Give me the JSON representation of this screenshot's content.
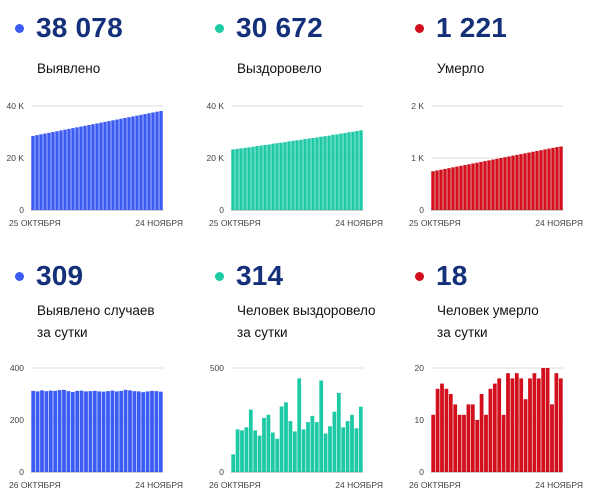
{
  "colors": {
    "blue": "#3b5bf4",
    "teal": "#1ec9a6",
    "red": "#d10f1d",
    "dark": "#14307a"
  },
  "chart_data": [
    {
      "id": "p1",
      "type": "bar",
      "color": "#3b5bf4",
      "value": "38 078",
      "label": "Выявлено",
      "ylim": [
        0,
        40000
      ],
      "yticks": [
        {
          "v": 0,
          "t": "0"
        },
        {
          "v": 20000,
          "t": "20 K"
        },
        {
          "v": 40000,
          "t": "40 K"
        }
      ],
      "start_label": "25 ОКТЯБРЯ",
      "end_label": "24 НОЯБРЯ",
      "values": [
        28500,
        28800,
        29100,
        29400,
        29700,
        30000,
        30300,
        30600,
        30900,
        31200,
        31500,
        31800,
        32100,
        32400,
        32700,
        33000,
        33300,
        33600,
        33900,
        34200,
        34500,
        34800,
        35100,
        35400,
        35700,
        36000,
        36300,
        36600,
        36900,
        37200,
        37500,
        37800,
        38078
      ]
    },
    {
      "id": "p2",
      "type": "bar",
      "color": "#1ec9a6",
      "value": "30 672",
      "label": "Выздоровело",
      "ylim": [
        0,
        40000
      ],
      "yticks": [
        {
          "v": 0,
          "t": "0"
        },
        {
          "v": 20000,
          "t": "20 K"
        },
        {
          "v": 40000,
          "t": "40 K"
        }
      ],
      "start_label": "25 ОКТЯБРЯ",
      "end_label": "24 НОЯБРЯ",
      "values": [
        23300,
        23500,
        23700,
        23900,
        24100,
        24300,
        24600,
        24800,
        25000,
        25200,
        25500,
        25700,
        25900,
        26100,
        26400,
        26600,
        26800,
        27000,
        27300,
        27500,
        27700,
        27900,
        28200,
        28400,
        28600,
        28900,
        29100,
        29400,
        29600,
        29900,
        30100,
        30400,
        30672
      ]
    },
    {
      "id": "p3",
      "type": "bar",
      "color": "#d10f1d",
      "value": "1 221",
      "label": "Умерло",
      "ylim": [
        0,
        2000
      ],
      "yticks": [
        {
          "v": 0,
          "t": "0"
        },
        {
          "v": 1000,
          "t": "1 K"
        },
        {
          "v": 2000,
          "t": "2 K"
        }
      ],
      "start_label": "25 ОКТЯБРЯ",
      "end_label": "24 НОЯБРЯ",
      "values": [
        745,
        760,
        775,
        790,
        805,
        820,
        835,
        850,
        865,
        880,
        895,
        910,
        925,
        940,
        955,
        970,
        985,
        1000,
        1015,
        1030,
        1045,
        1060,
        1075,
        1090,
        1105,
        1120,
        1135,
        1150,
        1165,
        1180,
        1195,
        1210,
        1221
      ]
    },
    {
      "id": "p4",
      "type": "bar",
      "color": "#3b5bf4",
      "value": "309",
      "label": "Выявлено случаев\nза сутки",
      "ylim": [
        0,
        400
      ],
      "yticks": [
        {
          "v": 0,
          "t": "0"
        },
        {
          "v": 200,
          "t": "200"
        },
        {
          "v": 400,
          "t": "400"
        }
      ],
      "start_label": "26 ОКТЯБРЯ",
      "end_label": "24 НОЯБРЯ",
      "values": [
        312,
        310,
        314,
        311,
        313,
        312,
        315,
        316,
        311,
        308,
        312,
        313,
        310,
        311,
        312,
        310,
        309,
        311,
        313,
        310,
        312,
        316,
        314,
        311,
        310,
        307,
        310,
        312,
        311,
        309
      ]
    },
    {
      "id": "p5",
      "type": "bar",
      "color": "#1ec9a6",
      "value": "314",
      "label": "Человек выздоровело\nза сутки",
      "ylim": [
        0,
        500
      ],
      "yticks": [
        {
          "v": 0,
          "t": "0"
        },
        {
          "v": 500,
          "t": "500"
        }
      ],
      "start_label": "26 ОКТЯБРЯ",
      "end_label": "24 НОЯБРЯ",
      "values": [
        85,
        205,
        200,
        215,
        300,
        200,
        175,
        260,
        275,
        190,
        160,
        315,
        335,
        245,
        195,
        450,
        205,
        240,
        270,
        240,
        440,
        185,
        220,
        290,
        380,
        215,
        245,
        275,
        210,
        314
      ]
    },
    {
      "id": "p6",
      "type": "bar",
      "color": "#d10f1d",
      "value": "18",
      "label": "Человек умерло\nза сутки",
      "ylim": [
        0,
        20
      ],
      "yticks": [
        {
          "v": 0,
          "t": "0"
        },
        {
          "v": 10,
          "t": "10"
        },
        {
          "v": 20,
          "t": "20"
        }
      ],
      "start_label": "26 ОКТЯБРЯ",
      "end_label": "24 НОЯБРЯ",
      "values": [
        11,
        16,
        17,
        16,
        15,
        13,
        11,
        11,
        13,
        13,
        10,
        15,
        11,
        16,
        17,
        18,
        11,
        19,
        18,
        19,
        18,
        14,
        18,
        19,
        18,
        20,
        20,
        13,
        19,
        18
      ]
    }
  ]
}
